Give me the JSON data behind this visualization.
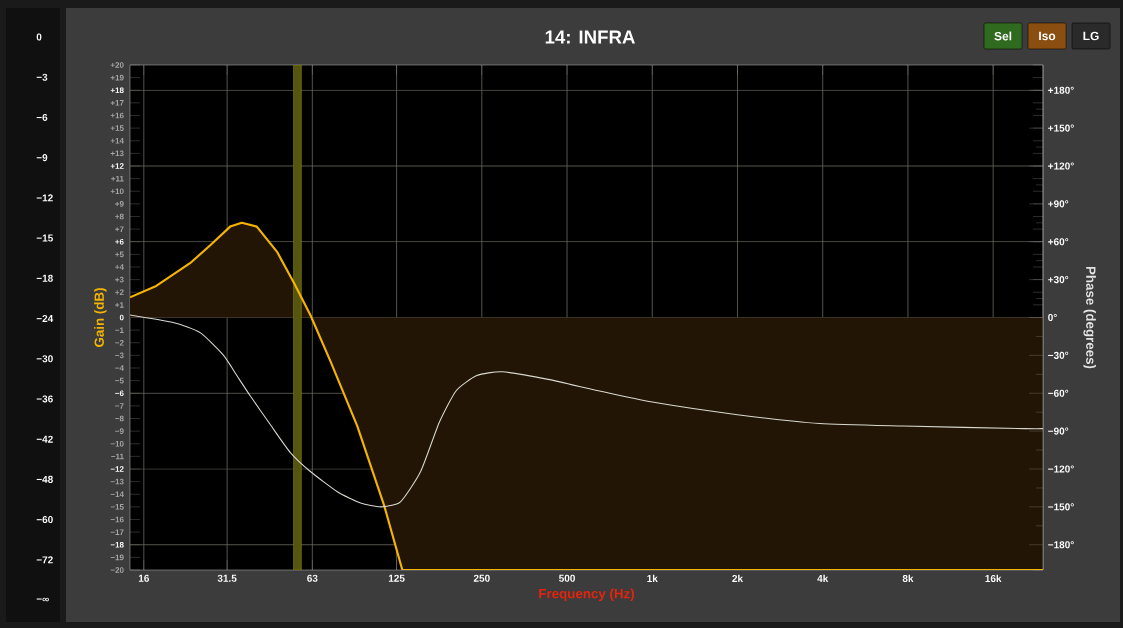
{
  "chart_data": {
    "type": "line",
    "title": "14: INFRA",
    "xlabel": "Frequency (Hz)",
    "ylabel": "Gain (dB)",
    "y2label": "Phase (degrees)",
    "annotations": [
      "Sel",
      "Iso",
      "LG",
      "0",
      "−3",
      "−6",
      "−9",
      "−12",
      "−15",
      "−18",
      "−24",
      "−30",
      "−36",
      "−42",
      "−48",
      "−60",
      "−72",
      "−∞"
    ],
    "log": "x",
    "grid": true,
    "xlim": [
      14.3,
      24000
    ],
    "xticks": [
      16,
      31.5,
      63,
      125,
      250,
      500,
      {
        "value": 1000,
        "label": "1k"
      },
      {
        "value": 2000,
        "label": "2k"
      },
      {
        "value": 4000,
        "label": "4k"
      },
      {
        "value": 8000,
        "label": "8k"
      },
      {
        "value": 16000,
        "label": "16k"
      }
    ],
    "ylim": [
      -20,
      20
    ],
    "yticks": [
      {
        "value": 20,
        "label": "+20"
      },
      {
        "value": 19,
        "label": "+19"
      },
      {
        "value": 18,
        "label": "+18"
      },
      {
        "value": 17,
        "label": "+17"
      },
      {
        "value": 16,
        "label": "+16"
      },
      {
        "value": 15,
        "label": "+15"
      },
      {
        "value": 14,
        "label": "+14"
      },
      {
        "value": 13,
        "label": "+13"
      },
      {
        "value": 12,
        "label": "+12"
      },
      {
        "value": 11,
        "label": "+11"
      },
      {
        "value": 10,
        "label": "+10"
      },
      {
        "value": 9,
        "label": "+9"
      },
      {
        "value": 8,
        "label": "+8"
      },
      {
        "value": 7,
        "label": "+7"
      },
      {
        "value": 6,
        "label": "+6"
      },
      {
        "value": 5,
        "label": "+5"
      },
      {
        "value": 4,
        "label": "+4"
      },
      {
        "value": 3,
        "label": "+3"
      },
      {
        "value": 2,
        "label": "+2"
      },
      {
        "value": 1,
        "label": "+1"
      },
      0,
      {
        "value": -1,
        "label": "−1"
      },
      {
        "value": -2,
        "label": "−2"
      },
      {
        "value": -3,
        "label": "−3"
      },
      {
        "value": -4,
        "label": "−4"
      },
      {
        "value": -5,
        "label": "−5"
      },
      {
        "value": -6,
        "label": "−6"
      },
      {
        "value": -7,
        "label": "−7"
      },
      {
        "value": -8,
        "label": "−8"
      },
      {
        "value": -9,
        "label": "−9"
      },
      {
        "value": -10,
        "label": "−10"
      },
      {
        "value": -11,
        "label": "−11"
      },
      {
        "value": -12,
        "label": "−12"
      },
      {
        "value": -13,
        "label": "−13"
      },
      {
        "value": -14,
        "label": "−14"
      },
      {
        "value": -15,
        "label": "−15"
      },
      {
        "value": -16,
        "label": "−16"
      },
      {
        "value": -17,
        "label": "−17"
      },
      {
        "value": -18,
        "label": "−18"
      },
      {
        "value": -19,
        "label": "−19"
      },
      {
        "value": -20,
        "label": "−20"
      }
    ],
    "y2lim": [
      -200,
      200
    ],
    "y2ticks": [
      {
        "value": 180,
        "label": "+180°"
      },
      {
        "value": 150,
        "label": "+150°"
      },
      {
        "value": 120,
        "label": "+120°"
      },
      {
        "value": 90,
        "label": "+90°"
      },
      {
        "value": 60,
        "label": "+60°"
      },
      {
        "value": 30,
        "label": "+30°"
      },
      {
        "value": 0,
        "label": "0°"
      },
      {
        "value": -30,
        "label": "−30°"
      },
      {
        "value": -60,
        "label": "−60°"
      },
      {
        "value": -90,
        "label": "−90°"
      },
      {
        "value": -120,
        "label": "−120°"
      },
      {
        "value": -150,
        "label": "−150°"
      },
      {
        "value": -180,
        "label": "−180°"
      }
    ],
    "bands": [
      {
        "axis": "x",
        "from": 54,
        "to": 57.6,
        "color": "#55550f"
      }
    ],
    "series": [
      {
        "type": "area",
        "color": "#f5b400",
        "x": [
          14.3,
          17.7,
          23.3,
          27.4,
          32.3,
          35.5,
          40.1,
          47.3,
          54.1,
          62,
          73.1,
          90.8,
          113,
          131,
          24000
        ],
        "values": [
          1.6,
          2.5,
          4.3,
          5.7,
          7.2,
          7.5,
          7.2,
          5.2,
          2.8,
          0.2,
          -3.5,
          -8.6,
          -14.9,
          -20,
          -20
        ]
      },
      {
        "axis": "y2",
        "color": "#d9d9d0",
        "x": [
          14.3,
          20.3,
          25.3,
          30.6,
          34.1,
          38,
          44.8,
          52.7,
          62,
          77.2,
          93.3,
          110,
          129,
          152,
          177,
          203,
          240,
          295,
          429,
          645,
          1000,
          2000,
          3900,
          7700,
          20700,
          24000
        ],
        "values": [
          2,
          -4,
          -12,
          -30,
          -46,
          -62,
          -85,
          -107,
          -122,
          -138,
          -147,
          -150,
          -146,
          -122,
          -83,
          -58,
          -46,
          -43,
          -49,
          -58,
          -67,
          -77,
          -84,
          -86,
          -88,
          -88
        ]
      }
    ]
  }
}
